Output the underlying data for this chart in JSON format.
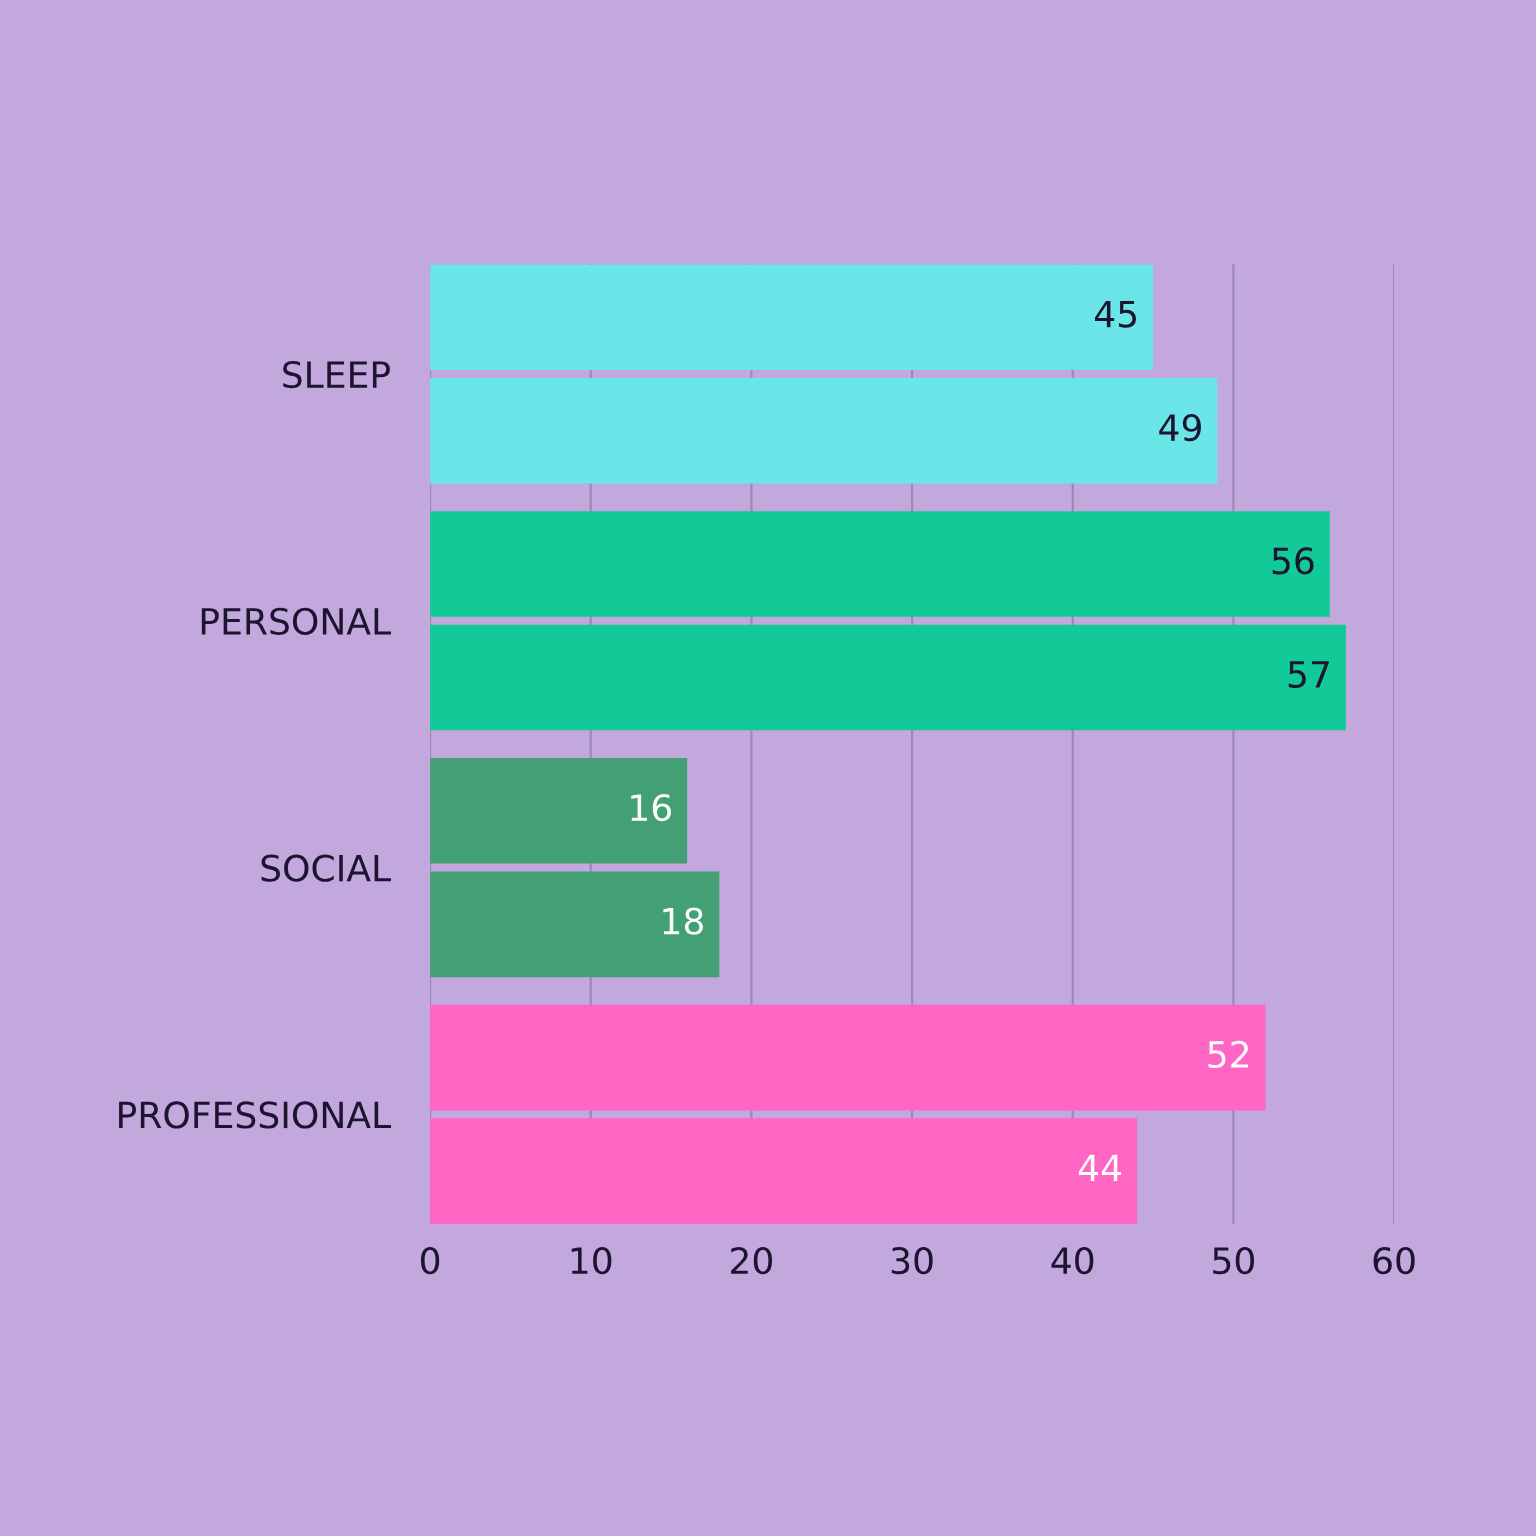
{
  "chart_data": {
    "type": "bar",
    "orientation": "horizontal",
    "categories": [
      "SLEEP",
      "PERSONAL",
      "SOCIAL",
      "PROFESSIONAL"
    ],
    "series": [
      {
        "colors": [
          "#6ae6e8",
          "#12c998",
          "#43a075",
          "#ff66c4"
        ],
        "values": [
          45,
          56,
          16,
          52
        ]
      },
      {
        "colors": [
          "#6ae6e8",
          "#12c998",
          "#43a075",
          "#ff66c4"
        ],
        "values": [
          49,
          57,
          18,
          44
        ]
      }
    ],
    "xlim": [
      0,
      60
    ],
    "xticks": [
      0,
      10,
      20,
      30,
      40,
      50,
      60
    ],
    "grid": "x",
    "data_labels": true
  }
}
